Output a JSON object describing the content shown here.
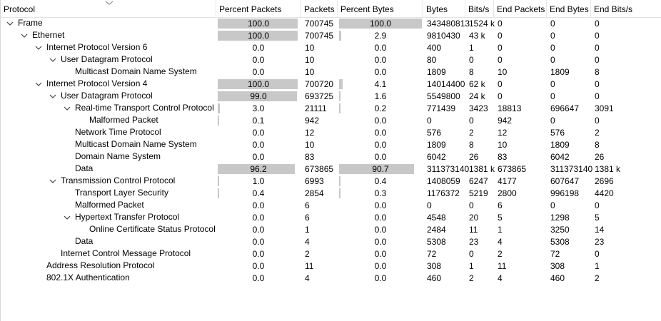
{
  "columns": {
    "protocol": "Protocol",
    "percent_packets": "Percent Packets",
    "packets": "Packets",
    "percent_bytes": "Percent Bytes",
    "bytes": "Bytes",
    "bits_s": "Bits/s",
    "end_packets": "End Packets",
    "end_bytes": "End Bytes",
    "end_bits_s": "End Bits/s"
  },
  "rows": [
    {
      "name": "Frame",
      "level": 0,
      "expanded": true,
      "pp": "100.0",
      "ppv": 100,
      "packets": "700745",
      "pb": "100.0",
      "pbv": 100,
      "bytes": "343480813",
      "bits": "1524 k",
      "end_packets": "0",
      "end_bytes": "0",
      "end_bits": "0"
    },
    {
      "name": "Ethernet",
      "level": 1,
      "expanded": true,
      "pp": "100.0",
      "ppv": 100,
      "packets": "700745",
      "pb": "2.9",
      "pbv": 2.9,
      "bytes": "9810430",
      "bits": "43 k",
      "end_packets": "0",
      "end_bytes": "0",
      "end_bits": "0"
    },
    {
      "name": "Internet Protocol Version 6",
      "level": 2,
      "expanded": true,
      "pp": "0.0",
      "ppv": 0,
      "packets": "10",
      "pb": "0.0",
      "pbv": 0,
      "bytes": "400",
      "bits": "1",
      "end_packets": "0",
      "end_bytes": "0",
      "end_bits": "0"
    },
    {
      "name": "User Datagram Protocol",
      "level": 3,
      "expanded": true,
      "pp": "0.0",
      "ppv": 0,
      "packets": "10",
      "pb": "0.0",
      "pbv": 0,
      "bytes": "80",
      "bits": "0",
      "end_packets": "0",
      "end_bytes": "0",
      "end_bits": "0"
    },
    {
      "name": "Multicast Domain Name System",
      "level": 4,
      "expanded": false,
      "pp": "0.0",
      "ppv": 0,
      "packets": "10",
      "pb": "0.0",
      "pbv": 0,
      "bytes": "1809",
      "bits": "8",
      "end_packets": "10",
      "end_bytes": "1809",
      "end_bits": "8"
    },
    {
      "name": "Internet Protocol Version 4",
      "level": 2,
      "expanded": true,
      "pp": "100.0",
      "ppv": 100,
      "packets": "700720",
      "pb": "4.1",
      "pbv": 4.1,
      "bytes": "14014400",
      "bits": "62 k",
      "end_packets": "0",
      "end_bytes": "0",
      "end_bits": "0"
    },
    {
      "name": "User Datagram Protocol",
      "level": 3,
      "expanded": true,
      "pp": "99.0",
      "ppv": 99,
      "packets": "693725",
      "pb": "1.6",
      "pbv": 1.6,
      "bytes": "5549800",
      "bits": "24 k",
      "end_packets": "0",
      "end_bytes": "0",
      "end_bits": "0"
    },
    {
      "name": "Real-time Transport Control Protocol",
      "level": 4,
      "expanded": true,
      "pp": "3.0",
      "ppv": 3,
      "packets": "21111",
      "pb": "0.2",
      "pbv": 0.2,
      "bytes": "771439",
      "bits": "3423",
      "end_packets": "18813",
      "end_bytes": "696647",
      "end_bits": "3091"
    },
    {
      "name": "Malformed Packet",
      "level": 5,
      "expanded": false,
      "pp": "0.1",
      "ppv": 0.1,
      "packets": "942",
      "pb": "0.0",
      "pbv": 0,
      "bytes": "0",
      "bits": "0",
      "end_packets": "942",
      "end_bytes": "0",
      "end_bits": "0"
    },
    {
      "name": "Network Time Protocol",
      "level": 4,
      "expanded": false,
      "pp": "0.0",
      "ppv": 0,
      "packets": "12",
      "pb": "0.0",
      "pbv": 0,
      "bytes": "576",
      "bits": "2",
      "end_packets": "12",
      "end_bytes": "576",
      "end_bits": "2"
    },
    {
      "name": "Multicast Domain Name System",
      "level": 4,
      "expanded": false,
      "pp": "0.0",
      "ppv": 0,
      "packets": "10",
      "pb": "0.0",
      "pbv": 0,
      "bytes": "1809",
      "bits": "8",
      "end_packets": "10",
      "end_bytes": "1809",
      "end_bits": "8"
    },
    {
      "name": "Domain Name System",
      "level": 4,
      "expanded": false,
      "pp": "0.0",
      "ppv": 0,
      "packets": "83",
      "pb": "0.0",
      "pbv": 0,
      "bytes": "6042",
      "bits": "26",
      "end_packets": "83",
      "end_bytes": "6042",
      "end_bits": "26"
    },
    {
      "name": "Data",
      "level": 4,
      "expanded": false,
      "pp": "96.2",
      "ppv": 96.2,
      "packets": "673865",
      "pb": "90.7",
      "pbv": 90.7,
      "bytes": "311373140",
      "bits": "1381 k",
      "end_packets": "673865",
      "end_bytes": "311373140",
      "end_bits": "1381 k"
    },
    {
      "name": "Transmission Control Protocol",
      "level": 3,
      "expanded": true,
      "pp": "1.0",
      "ppv": 1,
      "packets": "6993",
      "pb": "0.4",
      "pbv": 0.4,
      "bytes": "1408059",
      "bits": "6247",
      "end_packets": "4177",
      "end_bytes": "607647",
      "end_bits": "2696"
    },
    {
      "name": "Transport Layer Security",
      "level": 4,
      "expanded": false,
      "pp": "0.4",
      "ppv": 0.4,
      "packets": "2854",
      "pb": "0.3",
      "pbv": 0.3,
      "bytes": "1176372",
      "bits": "5219",
      "end_packets": "2800",
      "end_bytes": "996198",
      "end_bits": "4420"
    },
    {
      "name": "Malformed Packet",
      "level": 4,
      "expanded": false,
      "pp": "0.0",
      "ppv": 0,
      "packets": "6",
      "pb": "0.0",
      "pbv": 0,
      "bytes": "0",
      "bits": "0",
      "end_packets": "6",
      "end_bytes": "0",
      "end_bits": "0"
    },
    {
      "name": "Hypertext Transfer Protocol",
      "level": 4,
      "expanded": true,
      "pp": "0.0",
      "ppv": 0,
      "packets": "6",
      "pb": "0.0",
      "pbv": 0,
      "bytes": "4548",
      "bits": "20",
      "end_packets": "5",
      "end_bytes": "1298",
      "end_bits": "5"
    },
    {
      "name": "Online Certificate Status Protocol",
      "level": 5,
      "expanded": false,
      "pp": "0.0",
      "ppv": 0,
      "packets": "1",
      "pb": "0.0",
      "pbv": 0,
      "bytes": "2484",
      "bits": "11",
      "end_packets": "1",
      "end_bytes": "3250",
      "end_bits": "14"
    },
    {
      "name": "Data",
      "level": 4,
      "expanded": false,
      "pp": "0.0",
      "ppv": 0,
      "packets": "4",
      "pb": "0.0",
      "pbv": 0,
      "bytes": "5308",
      "bits": "23",
      "end_packets": "4",
      "end_bytes": "5308",
      "end_bits": "23"
    },
    {
      "name": "Internet Control Message Protocol",
      "level": 3,
      "expanded": false,
      "pp": "0.0",
      "ppv": 0,
      "packets": "2",
      "pb": "0.0",
      "pbv": 0,
      "bytes": "72",
      "bits": "0",
      "end_packets": "2",
      "end_bytes": "72",
      "end_bits": "0"
    },
    {
      "name": "Address Resolution Protocol",
      "level": 2,
      "expanded": false,
      "pp": "0.0",
      "ppv": 0,
      "packets": "11",
      "pb": "0.0",
      "pbv": 0,
      "bytes": "308",
      "bits": "1",
      "end_packets": "11",
      "end_bytes": "308",
      "end_bits": "1"
    },
    {
      "name": "802.1X Authentication",
      "level": 2,
      "expanded": false,
      "pp": "0.0",
      "ppv": 0,
      "packets": "4",
      "pb": "0.0",
      "pbv": 0,
      "bytes": "460",
      "bits": "2",
      "end_packets": "4",
      "end_bytes": "460",
      "end_bits": "2"
    }
  ],
  "colors": {
    "bar": "#c8c8c8",
    "header_border": "#e3e3e3"
  },
  "icons": {
    "sort": "chevron-down-icon",
    "expand": "chevron-down-icon"
  }
}
